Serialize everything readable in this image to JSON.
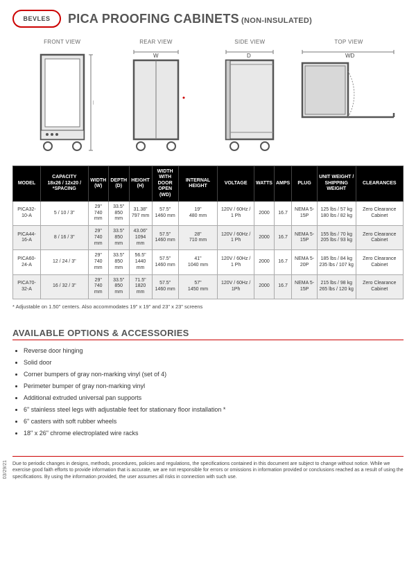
{
  "logo_text": "BEVLES",
  "title_main": "PICA PROOFING CABINETS",
  "title_sub": "(NON-INSULATED)",
  "views": {
    "front": "FRONT VIEW",
    "rear": "REAR VIEW",
    "side": "SIDE VIEW",
    "top": "TOP VIEW",
    "dim_w": "W",
    "dim_h": "H",
    "dim_d": "D",
    "dim_wd": "WD"
  },
  "table": {
    "headers": [
      "MODEL",
      "CAPACITY 18x26 / 12x20 / *SPACING",
      "WIDTH (W)",
      "DEPTH (D)",
      "HEIGHT (H)",
      "WIDTH WITH DOOR OPEN (WD)",
      "INTERNAL HEIGHT",
      "VOLTAGE",
      "WATTS",
      "AMPS",
      "PLUG",
      "UNIT WEIGHT / SHIPPING WEIGHT",
      "CLEARANCES"
    ],
    "rows": [
      {
        "model": "PICA32-10-A",
        "capacity": "5 / 10 / 3\"",
        "width": "29\"\n740 mm",
        "depth": "33.5\"\n850 mm",
        "height": "31.38\"\n797 mm",
        "wd": "57.5\"\n1460 mm",
        "ih": "19\"\n480 mm",
        "voltage": "120V / 60Hz / 1 Ph",
        "watts": "2000",
        "amps": "16.7",
        "plug": "NEMA 5-15P",
        "wt": "125 lbs / 57 kg\n180 lbs / 82 kg",
        "clear": "Zero Clearance Cabinet"
      },
      {
        "model": "PICA44-16-A",
        "capacity": "8 / 16 / 3\"",
        "width": "29\"\n740 mm",
        "depth": "33.5\"\n850 mm",
        "height": "43.06\"\n1094 mm",
        "wd": "57.5\"\n1460 mm",
        "ih": "28\"\n710 mm",
        "voltage": "120V / 60Hz / 1 Ph",
        "watts": "2000",
        "amps": "16.7",
        "plug": "NEMA 5-15P",
        "wt": "155 lbs / 70 kg\n205 lbs / 93 kg",
        "clear": "Zero Clearance Cabinet"
      },
      {
        "model": "PICA60-24-A",
        "capacity": "12 / 24 / 3\"",
        "width": "29\"\n740 mm",
        "depth": "33.5\"\n850 mm",
        "height": "56.5\"\n1440 mm",
        "wd": "57.5\"\n1460 mm",
        "ih": "41\"\n1040 mm",
        "voltage": "120V / 60Hz / 1 Ph",
        "watts": "2000",
        "amps": "16.7",
        "plug": "NEMA 5-20P",
        "wt": "185 lbs / 84 kg\n235 lbs / 107 kg",
        "clear": "Zero Clearance Cabinet"
      },
      {
        "model": "PICA70-32-A",
        "capacity": "16 / 32 / 3\"",
        "width": "29\"\n740 mm",
        "depth": "33.5\"\n850 mm",
        "height": "71.5\"\n1820 mm",
        "wd": "57.5\"\n1460 mm",
        "ih": "57\"\n1450 mm",
        "voltage": "120V / 60Hz / 1Ph",
        "watts": "2000",
        "amps": "16.7",
        "plug": "NEMA 5-15P",
        "wt": "215 lbs / 98 kg\n265 lbs / 120 kg",
        "clear": "Zero Clearance Cabinet"
      }
    ]
  },
  "table_footnote": "* Adjustable on 1.50\" centers. Also accommodates 19\" x 19\" and 23\" x 23\" screens",
  "options_title": "AVAILABLE OPTIONS & ACCESSORIES",
  "options": [
    "Reverse door hinging",
    "Solid door",
    "Corner bumpers of gray non-marking vinyl (set of 4)",
    "Perimeter bumper of gray non-marking vinyl",
    "Additional extruded universal pan supports",
    "6\" stainless steel legs with adjustable feet for stationary floor installation *",
    "6\" casters with soft rubber wheels",
    "18\" x 26\" chrome electroplated wire racks"
  ],
  "disclaimer": "Due to periodic changes in designs, methods, procedures, policies and regulations, the specifications contained in this document are subject to change without notice. While we exercise good faith efforts to provide information that is accurate, we are not responsible for errors or omissions in information provided or conclusions reached as a result of using the specifications. By using the information provided, the user assumes all risks in connection with such use.",
  "date_code": "03/29/21",
  "colors": {
    "accent": "#c00",
    "header_bg": "#000"
  }
}
